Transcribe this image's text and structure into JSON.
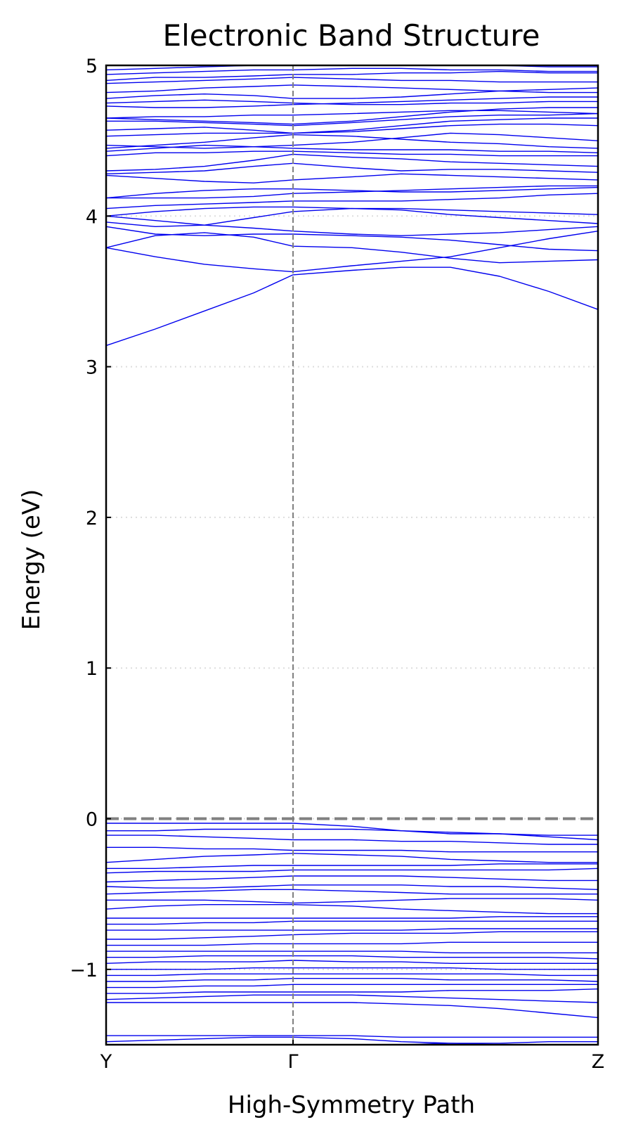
{
  "chart_data": {
    "type": "line",
    "title": "Electronic Band Structure",
    "xlabel": "High-Symmetry Path",
    "ylabel": "Energy (eV)",
    "ylim": [
      -1.5,
      5
    ],
    "xlim": [
      0,
      1
    ],
    "yticks": [
      {
        "value": -1,
        "label": "−1"
      },
      {
        "value": 0,
        "label": "0"
      },
      {
        "value": 1,
        "label": "1"
      },
      {
        "value": 2,
        "label": "2"
      },
      {
        "value": 3,
        "label": "3"
      },
      {
        "value": 4,
        "label": "4"
      },
      {
        "value": 5,
        "label": "5"
      }
    ],
    "kpoints": [
      {
        "label": "Y",
        "x": 0
      },
      {
        "label": "Γ",
        "x": 0.38
      },
      {
        "label": "Z",
        "x": 1
      }
    ],
    "fermi_level": 0,
    "grid": "horizontal dotted",
    "colors": {
      "bands": "#0000ee",
      "fermi": "#808080",
      "kpoint_lines": "#808080",
      "grid": "#dddddd"
    },
    "x": [
      0,
      0.1,
      0.2,
      0.3,
      0.38,
      0.5,
      0.6,
      0.7,
      0.8,
      0.9,
      1.0
    ],
    "bands": [
      [
        3.14,
        3.25,
        3.37,
        3.49,
        3.61,
        3.64,
        3.66,
        3.66,
        3.6,
        3.5,
        3.38
      ],
      [
        3.79,
        3.73,
        3.68,
        3.65,
        3.63,
        3.67,
        3.7,
        3.73,
        3.79,
        3.85,
        3.9
      ],
      [
        3.79,
        3.87,
        3.89,
        3.86,
        3.8,
        3.79,
        3.76,
        3.72,
        3.69,
        3.7,
        3.71
      ],
      [
        3.93,
        3.88,
        3.87,
        3.88,
        3.88,
        3.87,
        3.86,
        3.84,
        3.81,
        3.78,
        3.77
      ],
      [
        3.96,
        3.93,
        3.94,
        3.99,
        4.03,
        4.05,
        4.04,
        4.01,
        3.99,
        3.97,
        3.95
      ],
      [
        4.0,
        4.03,
        4.05,
        4.06,
        4.06,
        4.05,
        4.05,
        4.04,
        4.03,
        4.02,
        4.01
      ],
      [
        4.0,
        3.97,
        3.94,
        3.92,
        3.9,
        3.88,
        3.87,
        3.88,
        3.89,
        3.91,
        3.93
      ],
      [
        4.05,
        4.07,
        4.08,
        4.09,
        4.1,
        4.1,
        4.1,
        4.11,
        4.12,
        4.14,
        4.15
      ],
      [
        4.12,
        4.15,
        4.17,
        4.18,
        4.18,
        4.17,
        4.16,
        4.16,
        4.17,
        4.18,
        4.19
      ],
      [
        4.12,
        4.12,
        4.12,
        4.13,
        4.15,
        4.16,
        4.17,
        4.18,
        4.19,
        4.2,
        4.2
      ],
      [
        4.27,
        4.25,
        4.23,
        4.22,
        4.24,
        4.26,
        4.28,
        4.27,
        4.26,
        4.25,
        4.24
      ],
      [
        4.28,
        4.29,
        4.3,
        4.33,
        4.35,
        4.32,
        4.3,
        4.31,
        4.31,
        4.3,
        4.29
      ],
      [
        4.3,
        4.31,
        4.33,
        4.37,
        4.41,
        4.39,
        4.38,
        4.36,
        4.35,
        4.34,
        4.33
      ],
      [
        4.4,
        4.42,
        4.42,
        4.43,
        4.43,
        4.42,
        4.41,
        4.41,
        4.4,
        4.4,
        4.4
      ],
      [
        4.43,
        4.45,
        4.47,
        4.46,
        4.45,
        4.44,
        4.44,
        4.44,
        4.43,
        4.43,
        4.42
      ],
      [
        4.45,
        4.47,
        4.49,
        4.52,
        4.54,
        4.53,
        4.51,
        4.49,
        4.48,
        4.46,
        4.45
      ],
      [
        4.47,
        4.46,
        4.45,
        4.46,
        4.47,
        4.49,
        4.52,
        4.55,
        4.54,
        4.52,
        4.5
      ],
      [
        4.53,
        4.54,
        4.55,
        4.55,
        4.55,
        4.56,
        4.58,
        4.6,
        4.61,
        4.61,
        4.6
      ],
      [
        4.57,
        4.58,
        4.59,
        4.57,
        4.55,
        4.57,
        4.6,
        4.63,
        4.64,
        4.65,
        4.65
      ],
      [
        4.63,
        4.63,
        4.62,
        4.61,
        4.6,
        4.62,
        4.64,
        4.66,
        4.67,
        4.67,
        4.68
      ],
      [
        4.65,
        4.66,
        4.66,
        4.67,
        4.67,
        4.68,
        4.69,
        4.7,
        4.7,
        4.69,
        4.68
      ],
      [
        4.65,
        4.64,
        4.63,
        4.62,
        4.61,
        4.63,
        4.66,
        4.69,
        4.71,
        4.72,
        4.72
      ],
      [
        4.73,
        4.72,
        4.72,
        4.73,
        4.74,
        4.75,
        4.76,
        4.77,
        4.78,
        4.79,
        4.79
      ],
      [
        4.75,
        4.76,
        4.77,
        4.76,
        4.75,
        4.74,
        4.74,
        4.75,
        4.75,
        4.76,
        4.76
      ],
      [
        4.78,
        4.8,
        4.81,
        4.8,
        4.78,
        4.78,
        4.79,
        4.81,
        4.83,
        4.84,
        4.85
      ],
      [
        4.82,
        4.83,
        4.85,
        4.86,
        4.87,
        4.86,
        4.85,
        4.84,
        4.83,
        4.82,
        4.82
      ],
      [
        4.88,
        4.89,
        4.9,
        4.91,
        4.92,
        4.91,
        4.9,
        4.9,
        4.89,
        4.89,
        4.89
      ],
      [
        4.9,
        4.92,
        4.92,
        4.93,
        4.94,
        4.94,
        4.95,
        4.95,
        4.96,
        4.95,
        4.95
      ],
      [
        4.94,
        4.95,
        4.96,
        4.97,
        4.97,
        4.98,
        4.98,
        4.97,
        4.97,
        4.96,
        4.96
      ],
      [
        4.97,
        4.98,
        4.99,
        5.0,
        5.0,
        5.0,
        5.0,
        5.0,
        5.0,
        4.99,
        4.99
      ],
      [
        -0.03,
        -0.03,
        -0.03,
        -0.03,
        -0.03,
        -0.05,
        -0.08,
        -0.1,
        -0.1,
        -0.11,
        -0.11
      ],
      [
        -0.08,
        -0.08,
        -0.07,
        -0.07,
        -0.07,
        -0.07,
        -0.08,
        -0.09,
        -0.1,
        -0.12,
        -0.14
      ],
      [
        -0.11,
        -0.11,
        -0.12,
        -0.13,
        -0.14,
        -0.14,
        -0.15,
        -0.15,
        -0.16,
        -0.17,
        -0.17
      ],
      [
        -0.19,
        -0.19,
        -0.2,
        -0.2,
        -0.21,
        -0.21,
        -0.21,
        -0.22,
        -0.22,
        -0.22,
        -0.22
      ],
      [
        -0.29,
        -0.27,
        -0.25,
        -0.24,
        -0.23,
        -0.24,
        -0.25,
        -0.27,
        -0.28,
        -0.29,
        -0.29
      ],
      [
        -0.33,
        -0.33,
        -0.32,
        -0.31,
        -0.31,
        -0.31,
        -0.31,
        -0.31,
        -0.3,
        -0.3,
        -0.3
      ],
      [
        -0.36,
        -0.35,
        -0.35,
        -0.35,
        -0.34,
        -0.34,
        -0.34,
        -0.34,
        -0.34,
        -0.34,
        -0.33
      ],
      [
        -0.42,
        -0.41,
        -0.4,
        -0.39,
        -0.38,
        -0.38,
        -0.38,
        -0.39,
        -0.4,
        -0.41,
        -0.41
      ],
      [
        -0.45,
        -0.46,
        -0.46,
        -0.45,
        -0.44,
        -0.44,
        -0.44,
        -0.45,
        -0.45,
        -0.46,
        -0.47
      ],
      [
        -0.5,
        -0.49,
        -0.48,
        -0.47,
        -0.47,
        -0.48,
        -0.49,
        -0.5,
        -0.5,
        -0.5,
        -0.5
      ],
      [
        -0.54,
        -0.54,
        -0.54,
        -0.55,
        -0.56,
        -0.55,
        -0.54,
        -0.53,
        -0.53,
        -0.53,
        -0.54
      ],
      [
        -0.6,
        -0.58,
        -0.57,
        -0.57,
        -0.57,
        -0.58,
        -0.6,
        -0.61,
        -0.62,
        -0.63,
        -0.63
      ],
      [
        -0.66,
        -0.66,
        -0.66,
        -0.66,
        -0.66,
        -0.66,
        -0.66,
        -0.66,
        -0.65,
        -0.65,
        -0.65
      ],
      [
        -0.7,
        -0.7,
        -0.69,
        -0.69,
        -0.68,
        -0.68,
        -0.68,
        -0.68,
        -0.68,
        -0.68,
        -0.68
      ],
      [
        -0.74,
        -0.74,
        -0.74,
        -0.74,
        -0.74,
        -0.74,
        -0.74,
        -0.73,
        -0.73,
        -0.73,
        -0.73
      ],
      [
        -0.8,
        -0.8,
        -0.79,
        -0.78,
        -0.77,
        -0.76,
        -0.76,
        -0.76,
        -0.75,
        -0.75,
        -0.75
      ],
      [
        -0.84,
        -0.84,
        -0.84,
        -0.83,
        -0.83,
        -0.83,
        -0.83,
        -0.82,
        -0.82,
        -0.82,
        -0.82
      ],
      [
        -0.88,
        -0.88,
        -0.88,
        -0.88,
        -0.88,
        -0.88,
        -0.88,
        -0.89,
        -0.89,
        -0.89,
        -0.89
      ],
      [
        -0.92,
        -0.92,
        -0.91,
        -0.91,
        -0.91,
        -0.91,
        -0.92,
        -0.92,
        -0.92,
        -0.92,
        -0.93
      ],
      [
        -0.96,
        -0.95,
        -0.95,
        -0.95,
        -0.94,
        -0.95,
        -0.95,
        -0.96,
        -0.96,
        -0.96,
        -0.96
      ],
      [
        -1.0,
        -1.0,
        -1.0,
        -0.99,
        -0.99,
        -0.99,
        -0.99,
        -0.99,
        -1.0,
        -1.0,
        -1.0
      ],
      [
        -1.04,
        -1.04,
        -1.03,
        -1.03,
        -1.03,
        -1.03,
        -1.03,
        -1.03,
        -1.03,
        -1.04,
        -1.04
      ],
      [
        -1.08,
        -1.08,
        -1.07,
        -1.07,
        -1.06,
        -1.06,
        -1.06,
        -1.07,
        -1.07,
        -1.07,
        -1.08
      ],
      [
        -1.12,
        -1.12,
        -1.11,
        -1.11,
        -1.1,
        -1.1,
        -1.1,
        -1.1,
        -1.1,
        -1.1,
        -1.1
      ],
      [
        -1.16,
        -1.16,
        -1.15,
        -1.15,
        -1.15,
        -1.15,
        -1.15,
        -1.14,
        -1.14,
        -1.14,
        -1.13
      ],
      [
        -1.22,
        -1.22,
        -1.22,
        -1.22,
        -1.22,
        -1.22,
        -1.23,
        -1.24,
        -1.26,
        -1.29,
        -1.32
      ],
      [
        -1.2,
        -1.19,
        -1.18,
        -1.17,
        -1.17,
        -1.17,
        -1.18,
        -1.19,
        -1.2,
        -1.21,
        -1.22
      ],
      [
        -1.44,
        -1.44,
        -1.44,
        -1.44,
        -1.44,
        -1.44,
        -1.45,
        -1.45,
        -1.45,
        -1.45,
        -1.45
      ],
      [
        -1.48,
        -1.47,
        -1.46,
        -1.45,
        -1.45,
        -1.46,
        -1.48,
        -1.49,
        -1.5,
        -1.5,
        -1.5
      ],
      [
        -1.5,
        -1.5,
        -1.5,
        -1.5,
        -1.5,
        -1.5,
        -1.5,
        -1.49,
        -1.49,
        -1.48,
        -1.48
      ]
    ]
  }
}
